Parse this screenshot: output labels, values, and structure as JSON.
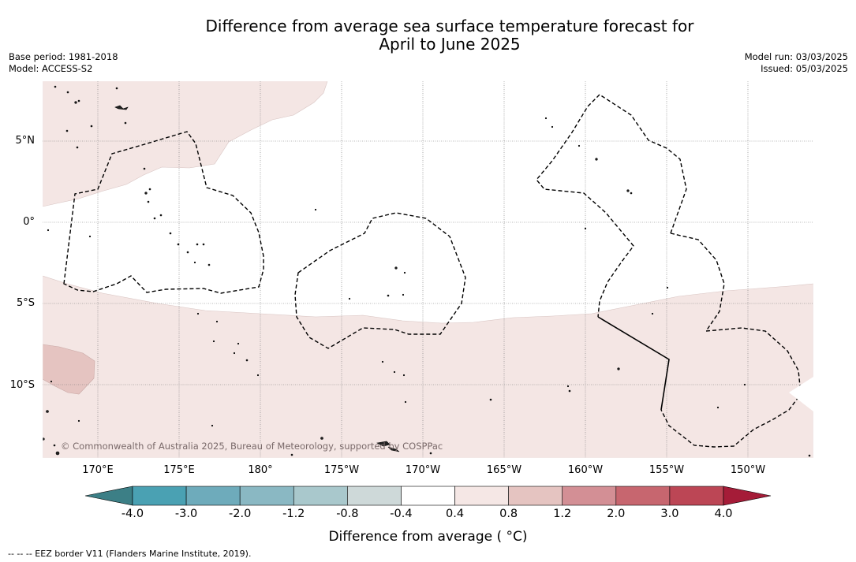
{
  "title": {
    "line1": "Difference from average sea surface temperature forecast for",
    "line2": "April to June 2025"
  },
  "meta_left": {
    "base_period": "Base period: 1981-2018",
    "model": "Model: ACCESS-S2"
  },
  "meta_right": {
    "model_run": "Model run: 03/03/2025",
    "issued": "Issued: 05/03/2025"
  },
  "map": {
    "lat_labels": [
      "5°N",
      "0°",
      "5°S",
      "10°S"
    ],
    "lon_labels": [
      "170°E",
      "175°E",
      "180°",
      "175°W",
      "170°W",
      "165°W",
      "160°W",
      "155°W",
      "150°W"
    ],
    "credit": "© Commonwealth of Australia 2025, Bureau of Meteorology, supported by COSPPac",
    "fill_colors": {
      "band_0_4_to_0_8": "#f4e6e4",
      "band_0_8_to_1_2": "#e5c4c1",
      "neutral": "#ffffff"
    }
  },
  "colorbar": {
    "ticks": [
      "-4.0",
      "-3.0",
      "-2.0",
      "-1.2",
      "-0.8",
      "-0.4",
      "0.4",
      "0.8",
      "1.2",
      "2.0",
      "3.0",
      "4.0"
    ],
    "under_color": "#3c7f86",
    "over_color": "#a51c38",
    "colors": [
      "#4aa1b3",
      "#6eabbb",
      "#8ab8c3",
      "#a9c8cc",
      "#ced9d9",
      "#ffffff",
      "#f5e7e5",
      "#e5c4c1",
      "#d38f95",
      "#c7666f",
      "#bc4655"
    ],
    "label": "Difference from average ( °C)"
  },
  "footer": {
    "legend": "--  --  -- EEZ border V11 (Flanders Marine Institute, 2019)."
  }
}
